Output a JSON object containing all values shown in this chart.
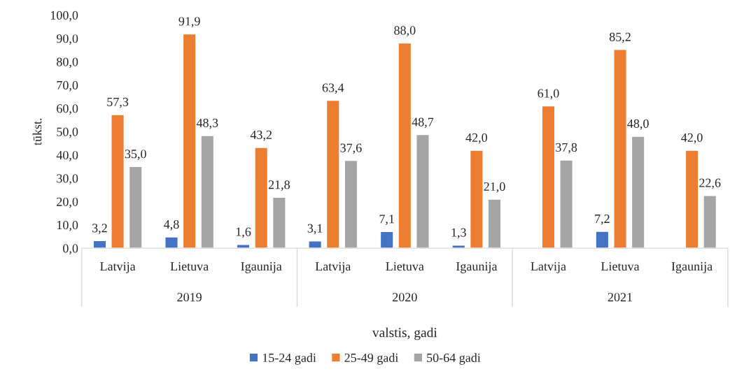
{
  "chart_data": {
    "type": "bar",
    "ylabel": "tūkst.",
    "xlabel": "valstis, gadi",
    "categories": [
      "Latvija",
      "Lietuva",
      "Igaunija",
      "Latvija",
      "Lietuva",
      "Igaunija",
      "Latvija",
      "Lietuva",
      "Igaunija"
    ],
    "annotations": [
      "2019",
      "2020",
      "2021"
    ],
    "series": [
      {
        "name": "15-24 gadi",
        "color": "#4472c4",
        "values": [
          3.2,
          4.8,
          1.6,
          3.1,
          7.1,
          1.3,
          null,
          7.2,
          null
        ],
        "value_labels": [
          "3,2",
          "4,8",
          "1,6",
          "3,1",
          "7,1",
          "1,3",
          null,
          "7,2",
          null
        ]
      },
      {
        "name": "25-49 gadi",
        "color": "#ed7d31",
        "values": [
          57.3,
          91.9,
          43.2,
          63.4,
          88.0,
          42.0,
          61.0,
          85.2,
          42.0
        ],
        "value_labels": [
          "57,3",
          "91,9",
          "43,2",
          "63,4",
          "88,0",
          "42,0",
          "61,0",
          "85,2",
          "42,0"
        ]
      },
      {
        "name": "50-64 gadi",
        "color": "#a5a5a5",
        "values": [
          35.0,
          48.3,
          21.8,
          37.6,
          48.7,
          21.0,
          37.8,
          48.0,
          22.6
        ],
        "value_labels": [
          "35,0",
          "48,3",
          "21,8",
          "37,6",
          "48,7",
          "21,0",
          "37,8",
          "48,0",
          "22,6"
        ]
      }
    ],
    "ylim": [
      0,
      100
    ],
    "yticks": [
      {
        "value": 0,
        "label": "0,0"
      },
      {
        "value": 10,
        "label": "10,0"
      },
      {
        "value": 20,
        "label": "20,0"
      },
      {
        "value": 30,
        "label": "30,0"
      },
      {
        "value": 40,
        "label": "40,0"
      },
      {
        "value": 50,
        "label": "50,0"
      },
      {
        "value": 60,
        "label": "60,0"
      },
      {
        "value": 70,
        "label": "70,0"
      },
      {
        "value": 80,
        "label": "80,0"
      },
      {
        "value": 90,
        "label": "90,0"
      },
      {
        "value": 100,
        "label": "100,0"
      }
    ],
    "grid": false,
    "legend": "bottom"
  }
}
